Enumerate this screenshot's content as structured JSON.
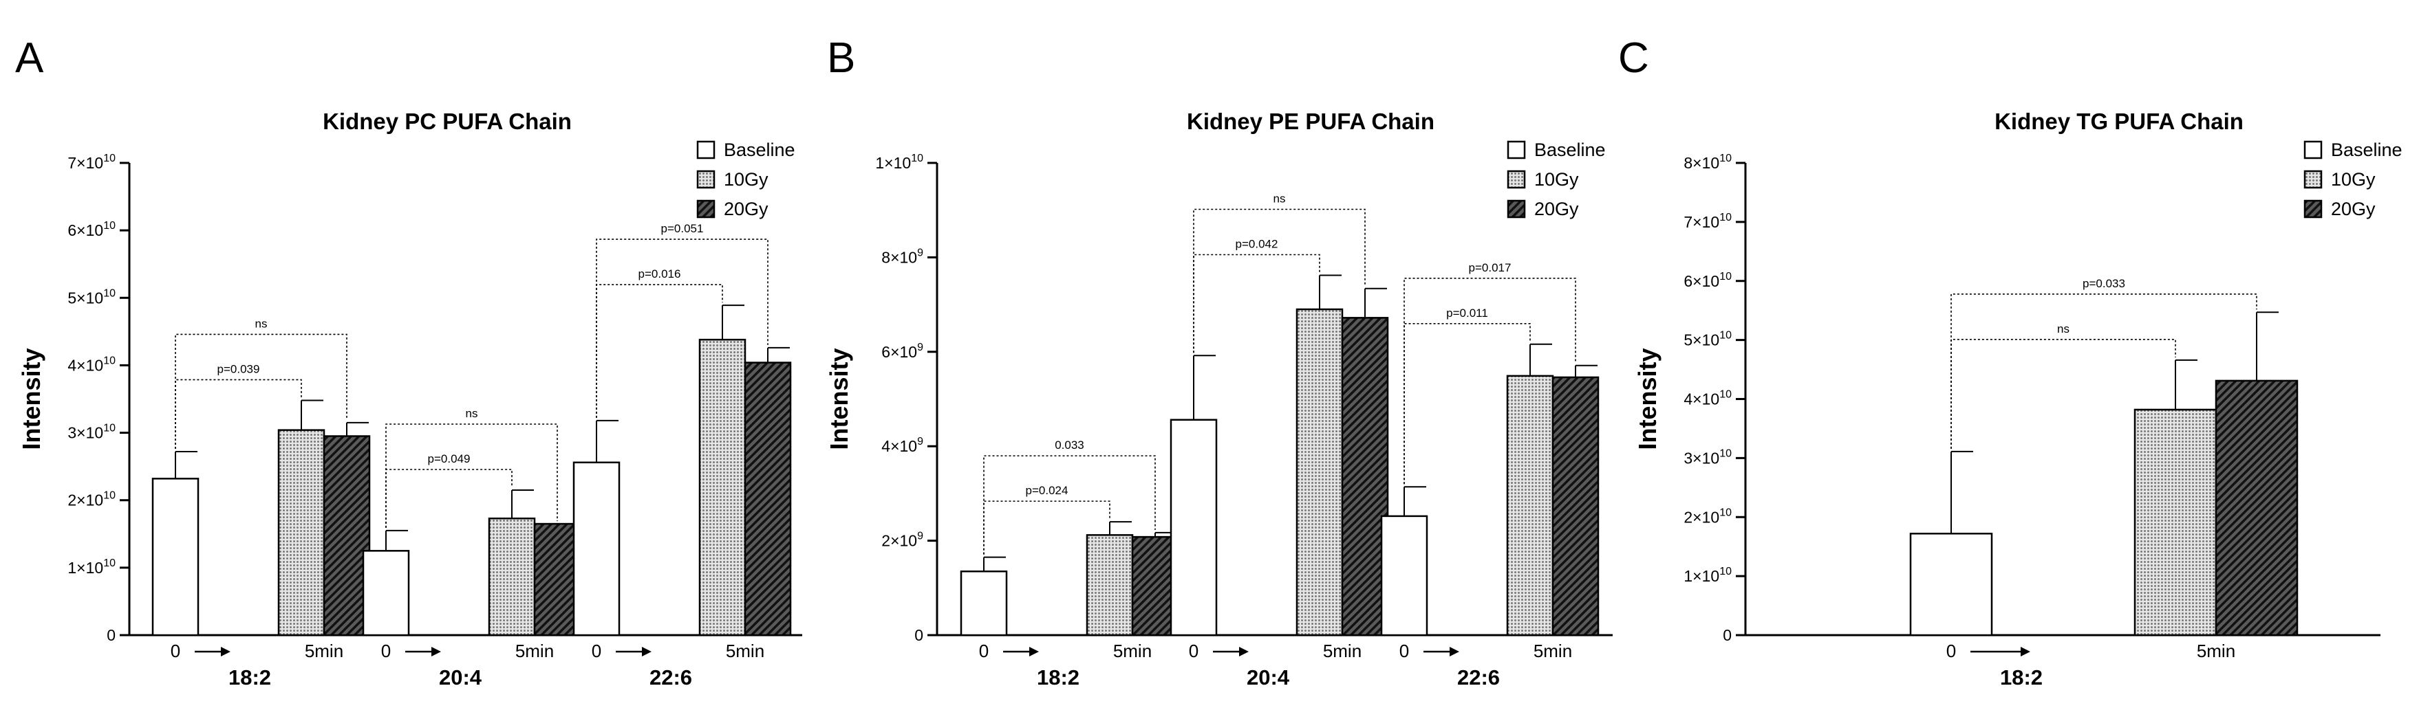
{
  "colors": {
    "ink": "#000000",
    "baseline_fill": "#ffffff",
    "dose10_fill": "#b8b8b8",
    "dose20_fill": "#3c3c3c"
  },
  "legend": [
    {
      "name": "Baseline",
      "pattern": "white"
    },
    {
      "name": "10Gy",
      "pattern": "dots"
    },
    {
      "name": "20Gy",
      "pattern": "hatch"
    }
  ],
  "chart_data": [
    {
      "panel_letter": "A",
      "type": "bar",
      "title": "Kidney PC PUFA Chain",
      "ylabel": "Intensity",
      "ylim": [
        0,
        70000000000
      ],
      "yticks": [
        {
          "value": 0,
          "mant": "0",
          "exp": ""
        },
        {
          "value": 10000000000,
          "mant": "1×10",
          "exp": "10"
        },
        {
          "value": 20000000000,
          "mant": "2×10",
          "exp": "10"
        },
        {
          "value": 30000000000,
          "mant": "3×10",
          "exp": "10"
        },
        {
          "value": 40000000000,
          "mant": "4×10",
          "exp": "10"
        },
        {
          "value": 50000000000,
          "mant": "5×10",
          "exp": "10"
        },
        {
          "value": 60000000000,
          "mant": "6×10",
          "exp": "10"
        },
        {
          "value": 70000000000,
          "mant": "7×10",
          "exp": "10"
        }
      ],
      "series_names": [
        "Baseline",
        "10Gy",
        "20Gy"
      ],
      "groups": [
        {
          "label": "18:2",
          "time_start": "0",
          "time_end": "5min",
          "values": [
            23200000000,
            30400000000,
            29500000000
          ],
          "errors": [
            4000000000,
            4400000000,
            2000000000
          ],
          "brackets": [
            {
              "from": 0,
              "to": 1,
              "label": "p=0.039",
              "level": 0
            },
            {
              "from": 0,
              "to": 2,
              "label": "ns",
              "level": 1
            }
          ]
        },
        {
          "label": "20:4",
          "time_start": "0",
          "time_end": "5min",
          "values": [
            12500000000,
            17300000000,
            16500000000
          ],
          "errors": [
            3000000000,
            4200000000,
            0
          ],
          "brackets": [
            {
              "from": 0,
              "to": 1,
              "label": "p=0.049",
              "level": 0
            },
            {
              "from": 0,
              "to": 2,
              "label": "ns",
              "level": 1
            }
          ]
        },
        {
          "label": "22:6",
          "time_start": "0",
          "time_end": "5min",
          "values": [
            25600000000,
            43800000000,
            40400000000
          ],
          "errors": [
            6200000000,
            5100000000,
            2200000000
          ],
          "brackets": [
            {
              "from": 0,
              "to": 1,
              "label": "p=0.016",
              "level": 0
            },
            {
              "from": 0,
              "to": 2,
              "label": "p=0.051",
              "level": 1
            }
          ]
        }
      ]
    },
    {
      "panel_letter": "B",
      "type": "bar",
      "title": "Kidney PE PUFA Chain",
      "ylabel": "Intensity",
      "ylim": [
        0,
        10000000000
      ],
      "yticks": [
        {
          "value": 0,
          "mant": "0",
          "exp": ""
        },
        {
          "value": 2000000000,
          "mant": "2×10",
          "exp": "9"
        },
        {
          "value": 4000000000,
          "mant": "4×10",
          "exp": "9"
        },
        {
          "value": 6000000000,
          "mant": "6×10",
          "exp": "9"
        },
        {
          "value": 8000000000,
          "mant": "8×10",
          "exp": "9"
        },
        {
          "value": 10000000000,
          "mant": "1×10",
          "exp": "10"
        }
      ],
      "series_names": [
        "Baseline",
        "10Gy",
        "20Gy"
      ],
      "groups": [
        {
          "label": "18:2",
          "time_start": "0",
          "time_end": "5min",
          "values": [
            1350000000,
            2120000000,
            2080000000
          ],
          "errors": [
            300000000,
            280000000,
            90000000
          ],
          "brackets": [
            {
              "from": 0,
              "to": 1,
              "label": "p=0.024",
              "level": 0
            },
            {
              "from": 0,
              "to": 2,
              "label": "0.033",
              "level": 1
            }
          ]
        },
        {
          "label": "20:4",
          "time_start": "0",
          "time_end": "5min",
          "values": [
            4560000000,
            6900000000,
            6720000000
          ],
          "errors": [
            1360000000,
            720000000,
            620000000
          ],
          "brackets": [
            {
              "from": 0,
              "to": 1,
              "label": "p=0.042",
              "level": 0
            },
            {
              "from": 0,
              "to": 2,
              "label": "ns",
              "level": 1
            }
          ]
        },
        {
          "label": "22:6",
          "time_start": "0",
          "time_end": "5min",
          "values": [
            2520000000,
            5490000000,
            5460000000
          ],
          "errors": [
            620000000,
            670000000,
            250000000
          ],
          "brackets": [
            {
              "from": 0,
              "to": 1,
              "label": "p=0.011",
              "level": 0
            },
            {
              "from": 0,
              "to": 2,
              "label": "p=0.017",
              "level": 1
            }
          ]
        }
      ]
    },
    {
      "panel_letter": "C",
      "type": "bar",
      "title": "Kidney TG PUFA Chain",
      "ylabel": "Intensity",
      "ylim": [
        0,
        80000000000
      ],
      "yticks": [
        {
          "value": 0,
          "mant": "0",
          "exp": ""
        },
        {
          "value": 10000000000,
          "mant": "1×10",
          "exp": "10"
        },
        {
          "value": 20000000000,
          "mant": "2×10",
          "exp": "10"
        },
        {
          "value": 30000000000,
          "mant": "3×10",
          "exp": "10"
        },
        {
          "value": 40000000000,
          "mant": "4×10",
          "exp": "10"
        },
        {
          "value": 50000000000,
          "mant": "5×10",
          "exp": "10"
        },
        {
          "value": 60000000000,
          "mant": "6×10",
          "exp": "10"
        },
        {
          "value": 70000000000,
          "mant": "7×10",
          "exp": "10"
        },
        {
          "value": 80000000000,
          "mant": "8×10",
          "exp": "10"
        }
      ],
      "series_names": [
        "Baseline",
        "10Gy",
        "20Gy"
      ],
      "groups": [
        {
          "label": "18:2",
          "time_start": "0",
          "time_end": "5min",
          "values": [
            17200000000,
            38200000000,
            43100000000
          ],
          "errors": [
            13900000000,
            8400000000,
            11600000000
          ],
          "brackets": [
            {
              "from": 0,
              "to": 1,
              "label": "ns",
              "level": 0
            },
            {
              "from": 0,
              "to": 2,
              "label": "p=0.033",
              "level": 1
            }
          ]
        }
      ]
    }
  ]
}
